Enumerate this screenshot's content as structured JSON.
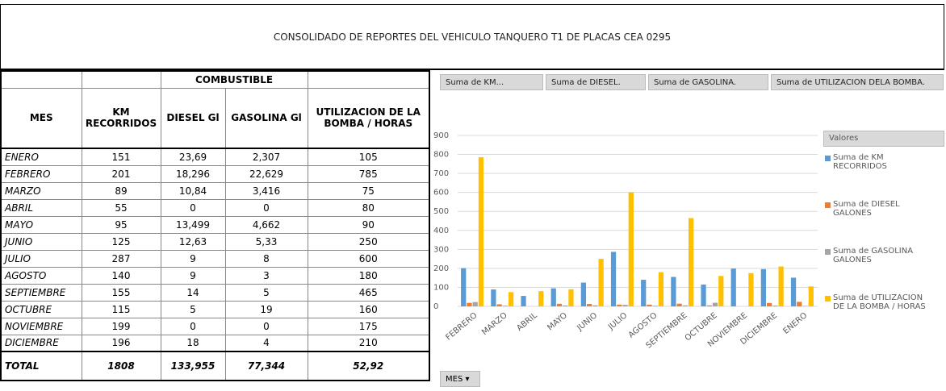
{
  "title": "CONSOLIDADO DE REPORTES DEL VEHICULO TANQUERO T1 DE PLACAS CEA 0295",
  "table": {
    "group_header": "COMBUSTIBLE",
    "columns": [
      "MES",
      "KM RECORRIDOS",
      "DIESEL  Gl",
      "GASOLINA  Gl",
      "UTILIZACION DE LA BOMBA / HORAS"
    ],
    "rows": [
      [
        "ENERO",
        "151",
        "23,69",
        "2,307",
        "105"
      ],
      [
        "FEBRERO",
        "201",
        "18,296",
        "22,629",
        "785"
      ],
      [
        "MARZO",
        "89",
        "10,84",
        "3,416",
        "75"
      ],
      [
        "ABRIL",
        "55",
        "0",
        "0",
        "80"
      ],
      [
        "MAYO",
        "95",
        "13,499",
        "4,662",
        "90"
      ],
      [
        "JUNIO",
        "125",
        "12,63",
        "5,33",
        "250"
      ],
      [
        "JULIO",
        "287",
        "9",
        "8",
        "600"
      ],
      [
        "AGOSTO",
        "140",
        "9",
        "3",
        "180"
      ],
      [
        "SEPTIEMBRE",
        "155",
        "14",
        "5",
        "465"
      ],
      [
        "OCTUBRE",
        "115",
        "5",
        "19",
        "160"
      ],
      [
        "NOVIEMBRE",
        "199",
        "0",
        "0",
        "175"
      ],
      [
        "DICIEMBRE",
        "196",
        "18",
        "4",
        "210"
      ]
    ],
    "total": [
      "TOTAL",
      "1808",
      "133,955",
      "77,344",
      "52,92"
    ]
  },
  "pivot": {
    "fields": [
      "Suma de KM...",
      "Suma de DIESEL.",
      "Suma de GASOLINA.",
      "Suma de UTILIZACION DELA BOMBA."
    ],
    "axis_field": "MES"
  },
  "chart_data": {
    "type": "bar",
    "legend_title": "Valores",
    "categories": [
      "FEBRERO",
      "MARZO",
      "ABRIL",
      "MAYO",
      "JUNIO",
      "JULIO",
      "AGOSTO",
      "SEPTIEMBRE",
      "OCTUBRE",
      "NOVIEMBRE",
      "DICIEMBRE",
      "ENERO"
    ],
    "series": [
      {
        "name": "Suma de KM RECORRIDOS",
        "color": "#5b9bd5",
        "values": [
          201,
          89,
          55,
          95,
          125,
          287,
          140,
          155,
          115,
          199,
          196,
          151
        ]
      },
      {
        "name": "Suma de DIESEL GALONES",
        "color": "#ed7d31",
        "values": [
          18.296,
          10.84,
          0,
          13.499,
          12.63,
          9,
          9,
          14,
          5,
          0,
          18,
          23.69
        ]
      },
      {
        "name": "Suma de GASOLINA GALONES",
        "color": "#a5a5a5",
        "values": [
          22.629,
          3.416,
          0,
          4.662,
          5.33,
          8,
          3,
          5,
          19,
          0,
          4,
          2.307
        ]
      },
      {
        "name": "Suma de UTILIZACION DE LA BOMBA / HORAS",
        "color": "#ffc000",
        "values": [
          785,
          75,
          80,
          90,
          250,
          600,
          180,
          465,
          160,
          175,
          210,
          105
        ]
      }
    ],
    "ylim": [
      0,
      900
    ],
    "yticks": [
      0,
      100,
      200,
      300,
      400,
      500,
      600,
      700,
      800,
      900
    ],
    "grid": true
  }
}
